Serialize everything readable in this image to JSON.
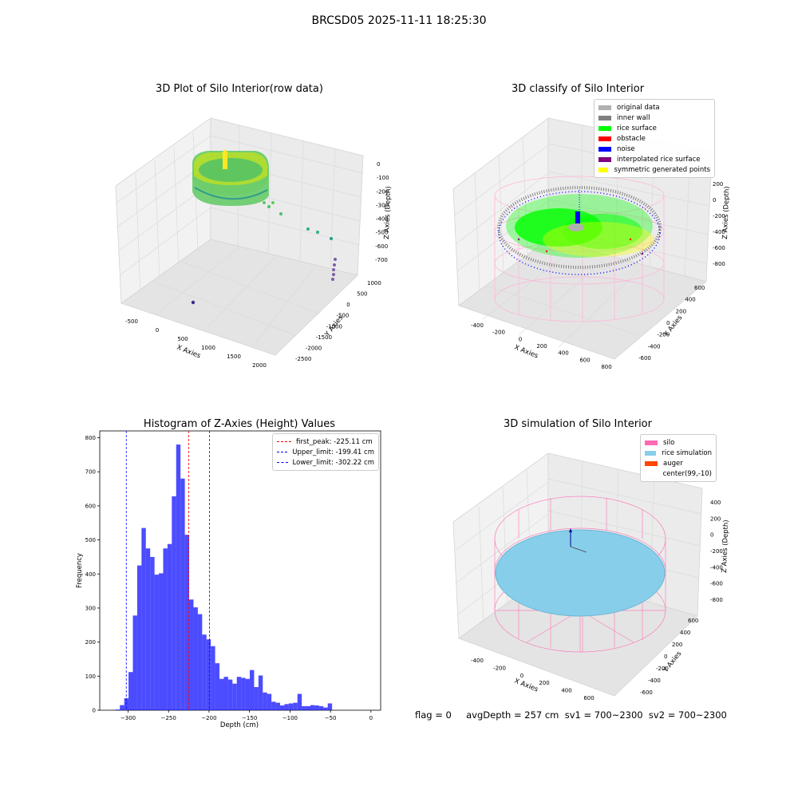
{
  "figure": {
    "suptitle": "BRCSD05 2025-11-11 18:25:30",
    "footer": "flag = 0     avgDepth = 257 cm  sv1 = 700~2300  sv2 = 700~2300"
  },
  "panel1": {
    "title": "3D Plot of Silo Interior(row data)",
    "xlabel": "X Axies",
    "ylabel": "Y Axies",
    "zlabel": "Z Axies (Depth)",
    "xticks": [
      "-500",
      "0",
      "500",
      "1000",
      "1500",
      "2000"
    ],
    "yticks": [
      "1000",
      "500",
      "0",
      "-500",
      "-1000",
      "-1500",
      "-2000",
      "-2500"
    ],
    "zticks": [
      "0",
      "-100",
      "-200",
      "-300",
      "-400",
      "-500",
      "-600",
      "-700"
    ]
  },
  "panel2": {
    "title": "3D classify of Silo Interior",
    "xlabel": "X Axies",
    "ylabel": "Y Axies",
    "zlabel": "Z Axies (Depth)",
    "xticks": [
      "-400",
      "-200",
      "0",
      "200",
      "400",
      "600",
      "800"
    ],
    "yticks": [
      "600",
      "400",
      "200",
      "0",
      "-200",
      "-400",
      "-600"
    ],
    "zticks": [
      "200",
      "0",
      "-200",
      "-400",
      "-600",
      "-800"
    ],
    "zticks_partial": [
      "0"
    ],
    "legend": [
      {
        "label": "original data",
        "color": "#b0b0b0"
      },
      {
        "label": "inner wall",
        "color": "#808080"
      },
      {
        "label": "rice surface",
        "color": "#00ff00"
      },
      {
        "label": "obstacle",
        "color": "#ff0000"
      },
      {
        "label": "noise",
        "color": "#0000ff"
      },
      {
        "label": "interpolated rice surface",
        "color": "#800080"
      },
      {
        "label": "symmetric generated points",
        "color": "#ffff00"
      }
    ]
  },
  "panel3": {
    "title": "Histogram of Z-Axies (Height) Values",
    "xlabel": "Depth (cm)",
    "ylabel": "Frequency",
    "legend": [
      {
        "label": "first_peak: -225.11 cm",
        "color": "#ff0000"
      },
      {
        "label": "Upper_limit: -199.41 cm",
        "color": "#0000ff"
      },
      {
        "label": "Lower_limit: -302.22 cm",
        "color": "#0000ff"
      }
    ]
  },
  "panel4": {
    "title": "3D simulation of Silo Interior",
    "xlabel": "X Axies",
    "ylabel": "Y Axies",
    "zlabel": "Z Axies (Depth)",
    "xticks": [
      "-400",
      "-200",
      "0",
      "200",
      "400",
      "600"
    ],
    "yticks": [
      "600",
      "400",
      "200",
      "0",
      "-200",
      "-400",
      "-600"
    ],
    "zticks": [
      "400",
      "200",
      "0",
      "-200",
      "-400",
      "-600",
      "-800"
    ],
    "legend": [
      {
        "label": "silo",
        "color": "#ff69b4"
      },
      {
        "label": "rice simulation",
        "color": "#87ceeb"
      },
      {
        "label": "auger",
        "color": "#ff4500"
      },
      {
        "label": "center(99,-10)",
        "color": "#ffffff"
      }
    ]
  },
  "chart_data": [
    {
      "type": "scatter",
      "title": "3D Plot of Silo Interior(row data)",
      "xlabel": "X Axies",
      "ylabel": "Y Axies",
      "zlabel": "Z Axies (Depth)",
      "xlim": [
        -600,
        2100
      ],
      "ylim": [
        -2600,
        1100
      ],
      "zlim": [
        -800,
        50
      ]
    },
    {
      "type": "scatter",
      "title": "3D classify of Silo Interior",
      "xlabel": "X Axies",
      "ylabel": "Y Axies",
      "zlabel": "Z Axies (Depth)",
      "series": [
        {
          "name": "original data"
        },
        {
          "name": "inner wall"
        },
        {
          "name": "rice surface"
        },
        {
          "name": "obstacle"
        },
        {
          "name": "noise"
        },
        {
          "name": "interpolated rice surface"
        },
        {
          "name": "symmetric generated points"
        }
      ]
    },
    {
      "type": "bar",
      "title": "Histogram of Z-Axies (Height) Values",
      "xlabel": "Depth (cm)",
      "ylabel": "Frequency",
      "xlim": [
        -335,
        12
      ],
      "ylim": [
        0,
        820
      ],
      "xticks": [
        -300,
        -250,
        -200,
        -150,
        -100,
        -50,
        0
      ],
      "yticks": [
        0,
        100,
        200,
        300,
        400,
        500,
        600,
        700,
        800
      ],
      "bin_width": 5.35,
      "bin_start": -315.5,
      "values": [
        2,
        15,
        35,
        112,
        278,
        425,
        535,
        475,
        450,
        398,
        402,
        475,
        488,
        628,
        780,
        680,
        515,
        325,
        302,
        282,
        222,
        208,
        188,
        138,
        92,
        98,
        90,
        78,
        98,
        95,
        92,
        118,
        68,
        102,
        52,
        48,
        25,
        22,
        14,
        18,
        20,
        22,
        48,
        12,
        12,
        15,
        14,
        12,
        8,
        20
      ],
      "vlines": [
        {
          "name": "first_peak: -225.11 cm",
          "x": -225.11,
          "color": "#ff0000"
        },
        {
          "name": "Upper_limit: -199.41 cm",
          "x": -199.41,
          "color": "#0000ff"
        },
        {
          "name": "Lower_limit: -302.22 cm",
          "x": -302.22,
          "color": "#0000ff"
        }
      ],
      "bar_color": "#0000ff"
    },
    {
      "type": "area",
      "title": "3D simulation of Silo Interior",
      "xlabel": "X Axies",
      "ylabel": "Y Axies",
      "zlabel": "Z Axies (Depth)",
      "series": [
        {
          "name": "silo"
        },
        {
          "name": "rice simulation"
        },
        {
          "name": "auger"
        },
        {
          "name": "center(99,-10)"
        }
      ]
    }
  ]
}
